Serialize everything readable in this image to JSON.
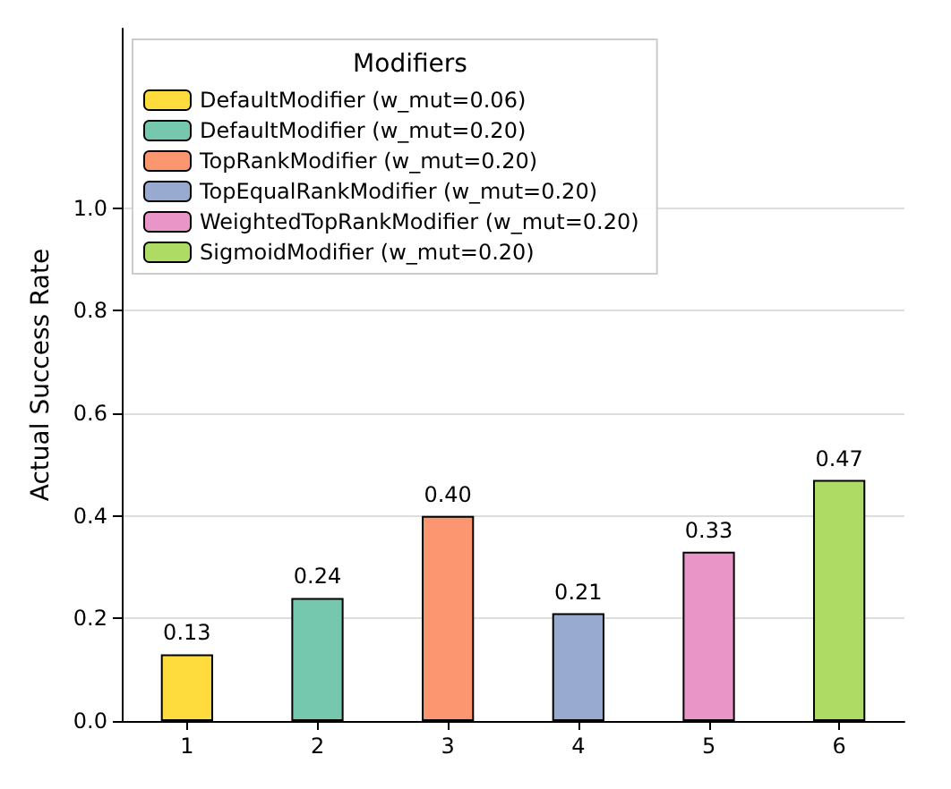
{
  "chart_data": {
    "type": "bar",
    "ylabel": "Actual Success Rate",
    "legend_title": "Modifiers",
    "legend": "top left",
    "grid": "y",
    "categories": [
      "1",
      "2",
      "3",
      "4",
      "5",
      "6"
    ],
    "ylim": [
      0,
      1.35
    ],
    "yticks": [
      {
        "value": 0,
        "label": "0.0"
      },
      {
        "value": 0.2,
        "label": "0.2"
      },
      {
        "value": 0.4,
        "label": "0.4"
      },
      {
        "value": 0.6,
        "label": "0.6"
      },
      {
        "value": 0.8,
        "label": "0.8"
      },
      {
        "value": 1,
        "label": "1.0"
      }
    ],
    "series": [
      {
        "name": "DefaultModifier (w_mut=0.06)",
        "color": "#ffdc3e",
        "values": [
          0.13,
          null,
          null,
          null,
          null,
          null
        ],
        "value_labels": [
          "0.13",
          null,
          null,
          null,
          null,
          null
        ]
      },
      {
        "name": "DefaultModifier (w_mut=0.20)",
        "color": "#75c8ae",
        "values": [
          null,
          0.24,
          null,
          null,
          null,
          null
        ],
        "value_labels": [
          null,
          "0.24",
          null,
          null,
          null,
          null
        ]
      },
      {
        "name": "TopRankModifier (w_mut=0.20)",
        "color": "#fc9670",
        "values": [
          null,
          null,
          0.4,
          null,
          null,
          null
        ],
        "value_labels": [
          null,
          null,
          "0.40",
          null,
          null,
          null
        ]
      },
      {
        "name": "TopEqualRankModifier (w_mut=0.20)",
        "color": "#98aad0",
        "values": [
          null,
          null,
          null,
          0.21,
          null,
          null
        ],
        "value_labels": [
          null,
          null,
          null,
          "0.21",
          null,
          null
        ]
      },
      {
        "name": "WeightedTopRankModifier (w_mut=0.20)",
        "color": "#e995c8",
        "values": [
          null,
          null,
          null,
          null,
          0.33,
          null
        ],
        "value_labels": [
          null,
          null,
          null,
          null,
          "0.33",
          null
        ]
      },
      {
        "name": "SigmoidModifier (w_mut=0.20)",
        "color": "#aedb64",
        "values": [
          null,
          null,
          null,
          null,
          null,
          0.47
        ],
        "value_labels": [
          null,
          null,
          null,
          null,
          null,
          "0.47"
        ]
      }
    ]
  }
}
